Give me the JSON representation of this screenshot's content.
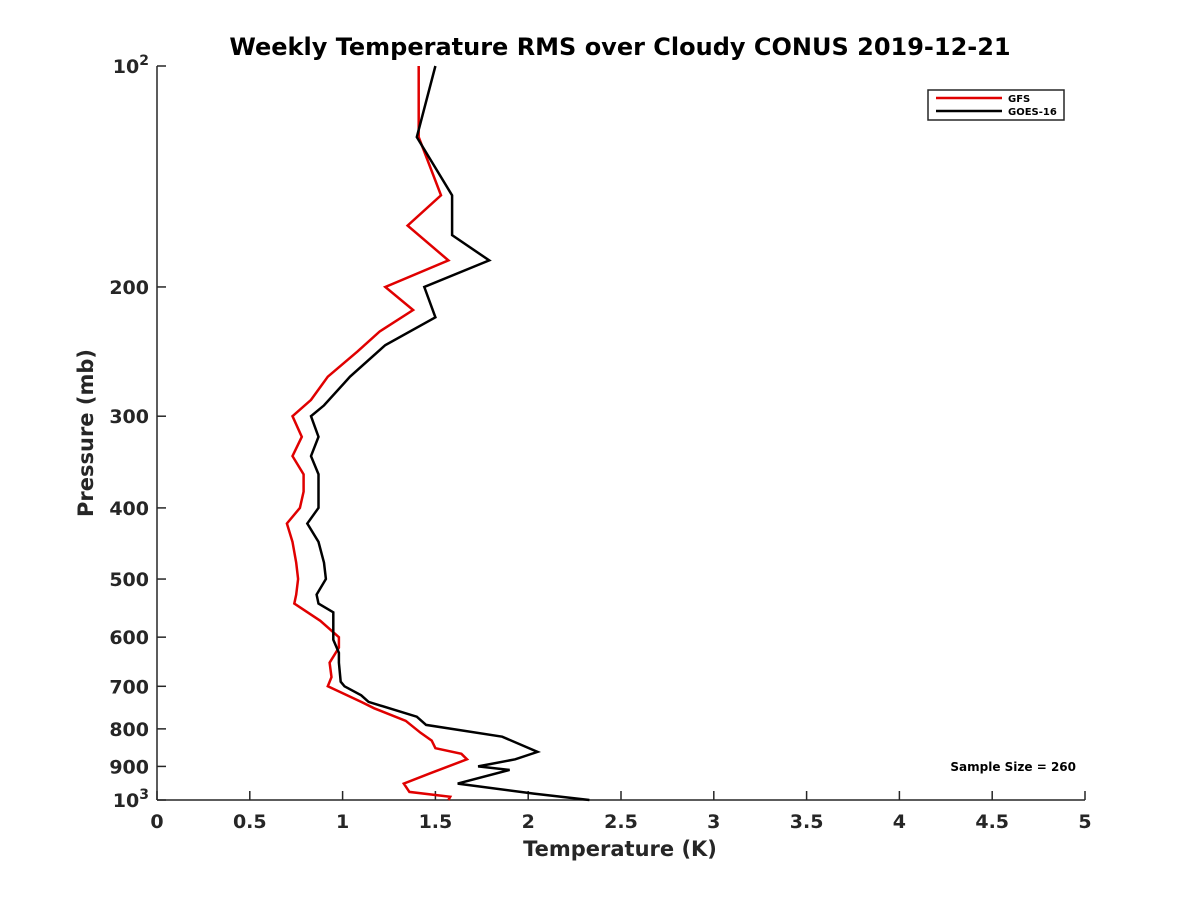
{
  "chart_data": {
    "type": "line",
    "title": "Weekly Temperature RMS over Cloudy CONUS 2019-12-21",
    "xlabel": "Temperature (K)",
    "ylabel": "Pressure (mb)",
    "xlim": [
      0,
      5
    ],
    "ylim": [
      100,
      1000
    ],
    "y_scale": "log",
    "y_reversed": true,
    "grid": false,
    "legend_position": "top-right",
    "x_ticks": [
      0,
      0.5,
      1,
      1.5,
      2,
      2.5,
      3,
      3.5,
      4,
      4.5,
      5
    ],
    "x_tick_labels": [
      "0",
      "0.5",
      "1",
      "1.5",
      "2",
      "2.5",
      "3",
      "3.5",
      "4",
      "4.5",
      "5"
    ],
    "y_ticks": [
      100,
      200,
      300,
      400,
      500,
      600,
      700,
      800,
      900,
      1000
    ],
    "y_tick_labels": [
      {
        "base": "10",
        "exp": "2"
      },
      {
        "base": "200",
        "exp": ""
      },
      {
        "base": "300",
        "exp": ""
      },
      {
        "base": "400",
        "exp": ""
      },
      {
        "base": "500",
        "exp": ""
      },
      {
        "base": "600",
        "exp": ""
      },
      {
        "base": "700",
        "exp": ""
      },
      {
        "base": "800",
        "exp": ""
      },
      {
        "base": "900",
        "exp": ""
      },
      {
        "base": "10",
        "exp": "3"
      }
    ],
    "series": [
      {
        "name": "GFS",
        "color": "#e00000",
        "points": [
          [
            1.41,
            100
          ],
          [
            1.41,
            125
          ],
          [
            1.53,
            150
          ],
          [
            1.35,
            165
          ],
          [
            1.57,
            184
          ],
          [
            1.23,
            200
          ],
          [
            1.38,
            215
          ],
          [
            1.2,
            230
          ],
          [
            1.08,
            245
          ],
          [
            0.92,
            265
          ],
          [
            0.83,
            285
          ],
          [
            0.73,
            300
          ],
          [
            0.78,
            320
          ],
          [
            0.73,
            340
          ],
          [
            0.79,
            360
          ],
          [
            0.79,
            380
          ],
          [
            0.77,
            400
          ],
          [
            0.7,
            420
          ],
          [
            0.73,
            445
          ],
          [
            0.75,
            475
          ],
          [
            0.76,
            500
          ],
          [
            0.75,
            525
          ],
          [
            0.74,
            540
          ],
          [
            0.88,
            570
          ],
          [
            0.98,
            600
          ],
          [
            0.98,
            620
          ],
          [
            0.93,
            650
          ],
          [
            0.94,
            680
          ],
          [
            0.92,
            700
          ],
          [
            1.1,
            735
          ],
          [
            1.17,
            750
          ],
          [
            1.34,
            780
          ],
          [
            1.42,
            810
          ],
          [
            1.48,
            830
          ],
          [
            1.5,
            850
          ],
          [
            1.64,
            865
          ],
          [
            1.67,
            880
          ],
          [
            1.47,
            920
          ],
          [
            1.33,
            950
          ],
          [
            1.36,
            975
          ],
          [
            1.58,
            990
          ],
          [
            1.57,
            1000
          ]
        ]
      },
      {
        "name": "GOES-16",
        "color": "#000000",
        "points": [
          [
            1.5,
            100
          ],
          [
            1.4,
            125
          ],
          [
            1.59,
            150
          ],
          [
            1.59,
            170
          ],
          [
            1.79,
            184
          ],
          [
            1.44,
            200
          ],
          [
            1.5,
            220
          ],
          [
            1.23,
            240
          ],
          [
            1.04,
            265
          ],
          [
            0.9,
            290
          ],
          [
            0.83,
            300
          ],
          [
            0.87,
            320
          ],
          [
            0.83,
            340
          ],
          [
            0.87,
            360
          ],
          [
            0.87,
            400
          ],
          [
            0.81,
            420
          ],
          [
            0.87,
            445
          ],
          [
            0.9,
            475
          ],
          [
            0.91,
            500
          ],
          [
            0.86,
            525
          ],
          [
            0.87,
            540
          ],
          [
            0.95,
            555
          ],
          [
            0.95,
            590
          ],
          [
            0.95,
            605
          ],
          [
            0.98,
            630
          ],
          [
            0.98,
            650
          ],
          [
            0.99,
            690
          ],
          [
            1.01,
            700
          ],
          [
            1.1,
            720
          ],
          [
            1.14,
            735
          ],
          [
            1.4,
            770
          ],
          [
            1.45,
            790
          ],
          [
            1.86,
            820
          ],
          [
            2.05,
            860
          ],
          [
            1.93,
            880
          ],
          [
            1.73,
            900
          ],
          [
            1.9,
            910
          ],
          [
            1.62,
            950
          ],
          [
            2.03,
            980
          ],
          [
            2.33,
            1000
          ]
        ]
      }
    ],
    "annotations": [
      "Sample Size = 260"
    ]
  }
}
